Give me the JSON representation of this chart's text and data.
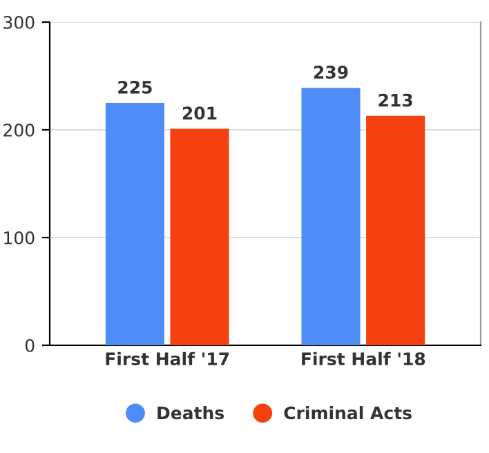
{
  "chart_data": {
    "type": "bar",
    "categories": [
      "First Half '17",
      "First Half '18"
    ],
    "series": [
      {
        "name": "Deaths",
        "color": "#4e8df5",
        "values": [
          225,
          239
        ]
      },
      {
        "name": "Criminal Acts",
        "color": "#f5400f",
        "values": [
          201,
          213
        ]
      }
    ],
    "ylim": [
      0,
      300
    ],
    "yticks": [
      0,
      100,
      200,
      300
    ],
    "grid": "y",
    "legend": "bottom",
    "data_labels": true
  }
}
